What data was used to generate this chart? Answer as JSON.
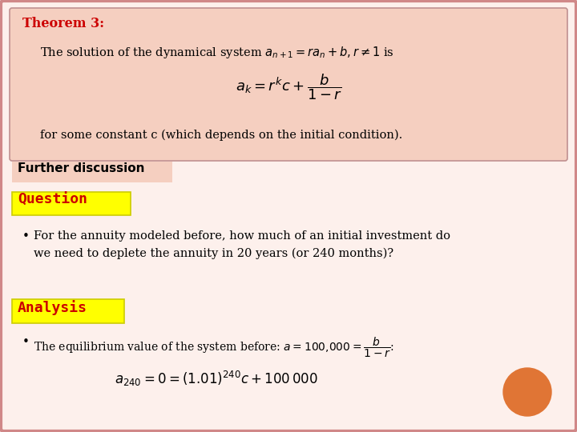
{
  "bg_color": "#ffffff",
  "theorem_box_bg": "#f5cfc0",
  "theorem_box_border": "#c09090",
  "theorem_label": "Theorem 3:",
  "theorem_label_color": "#cc0000",
  "further_discussion_label": "Further discussion",
  "further_discussion_bg": "#f5cfc0",
  "question_label": "Question",
  "question_bg": "#ffff00",
  "question_border": "#cccc00",
  "question_text_color": "#cc0000",
  "bullet1_line1": "For the annuity modeled before, how much of an initial investment do",
  "bullet1_line2": "we need to deplete the annuity in 20 years (or 240 months)?",
  "analysis_label": "Analysis",
  "analysis_bg": "#ffff00",
  "analysis_border": "#cccc00",
  "analysis_text_color": "#cc0000",
  "orange_circle_color": "#e07535",
  "slide_border_color": "#d08888",
  "slide_bg": "#fdf0ec"
}
